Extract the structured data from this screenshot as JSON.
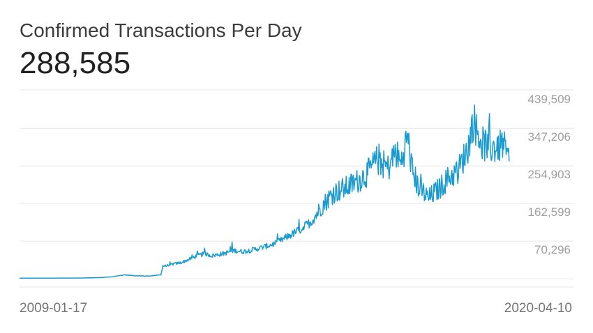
{
  "header": {
    "title": "Confirmed Transactions Per Day",
    "current_value": "288,585"
  },
  "chart_data": {
    "type": "line",
    "title": "Confirmed Transactions Per Day",
    "x_start": "2009-01-17",
    "x_end": "2020-04-10",
    "x_tick_labels": [
      "2009-01-17",
      "2020-04-10"
    ],
    "y_tick_labels": [
      "439,509",
      "347,206",
      "254,903",
      "162,599",
      "70,296"
    ],
    "y_ticks": [
      439509,
      347206,
      254903,
      162599,
      70296
    ],
    "ylim": [
      -21880,
      462000
    ],
    "grid": true,
    "y_axis_position": "right",
    "line_color": "#1a9bd0",
    "series": [
      {
        "values": [
          [
            "2009-01-17",
            0
          ],
          [
            "2010-01-01",
            100
          ],
          [
            "2010-07-01",
            300
          ],
          [
            "2010-12-01",
            1500
          ],
          [
            "2011-03-01",
            3000
          ],
          [
            "2011-06-15",
            8000
          ],
          [
            "2011-09-01",
            6000
          ],
          [
            "2012-01-01",
            5000
          ],
          [
            "2012-04-15",
            8000
          ],
          [
            "2012-05-01",
            30000
          ],
          [
            "2012-06-01",
            30000
          ],
          [
            "2012-08-01",
            35000
          ],
          [
            "2012-10-01",
            38000
          ],
          [
            "2012-12-01",
            45000
          ],
          [
            "2013-02-15",
            55000
          ],
          [
            "2013-04-15",
            60000
          ],
          [
            "2013-06-15",
            55000
          ],
          [
            "2013-08-15",
            58000
          ],
          [
            "2013-10-15",
            62000
          ],
          [
            "2013-12-15",
            68000
          ],
          [
            "2014-03-01",
            65000
          ],
          [
            "2014-06-01",
            70000
          ],
          [
            "2014-09-01",
            77000
          ],
          [
            "2014-12-01",
            85000
          ],
          [
            "2015-03-01",
            100000
          ],
          [
            "2015-07-01",
            120000
          ],
          [
            "2015-10-01",
            140000
          ],
          [
            "2016-01-01",
            180000
          ],
          [
            "2016-04-01",
            210000
          ],
          [
            "2016-07-01",
            220000
          ],
          [
            "2016-10-01",
            235000
          ],
          [
            "2017-01-01",
            255000
          ],
          [
            "2017-04-01",
            290000
          ],
          [
            "2017-07-01",
            270000
          ],
          [
            "2017-09-01",
            310000
          ],
          [
            "2017-10-15",
            280000
          ],
          [
            "2017-12-10",
            350000
          ],
          [
            "2018-01-15",
            270000
          ],
          [
            "2018-03-01",
            230000
          ],
          [
            "2018-06-01",
            195000
          ],
          [
            "2018-09-01",
            220000
          ],
          [
            "2018-12-01",
            250000
          ],
          [
            "2019-02-01",
            260000
          ],
          [
            "2019-05-01",
            320000
          ],
          [
            "2019-06-15",
            390000
          ],
          [
            "2019-07-15",
            360000
          ],
          [
            "2019-09-01",
            330000
          ],
          [
            "2019-11-01",
            320000
          ],
          [
            "2020-01-01",
            320000
          ],
          [
            "2020-02-15",
            330000
          ],
          [
            "2020-03-20",
            300000
          ],
          [
            "2020-04-10",
            288585
          ]
        ]
      }
    ]
  }
}
